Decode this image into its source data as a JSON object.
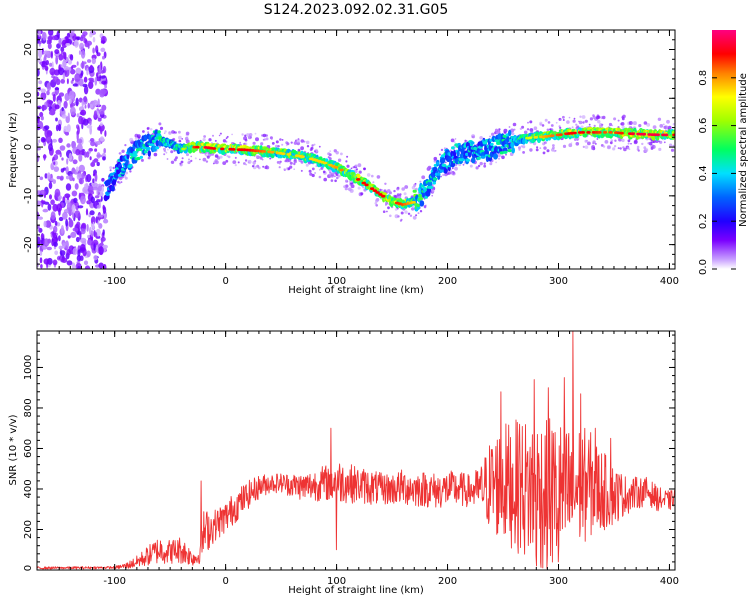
{
  "figure_title": "S124.2023.092.02.31.G05",
  "chart_data": [
    {
      "type": "heatmap",
      "title": "",
      "xlabel": "Height of straight line (km)",
      "ylabel": "Frequency (Hz)",
      "xlim": [
        -170,
        405
      ],
      "ylim": [
        -25,
        24
      ],
      "x_ticks": [
        -100,
        0,
        100,
        200,
        300,
        400
      ],
      "y_ticks": [
        -20,
        -10,
        0,
        10,
        20
      ],
      "grid": false,
      "colorbar": {
        "label": "Normalized spectral amplitude",
        "range": [
          0.0,
          1.0
        ],
        "ticks": [
          0.0,
          0.2,
          0.4,
          0.6,
          0.8
        ],
        "tick_labels": [
          "0.0",
          "0.2",
          "0.4",
          "0.6",
          "0.8"
        ],
        "colors": [
          "#ffffff",
          "#6a00ff",
          "#0000ff",
          "#00c8ff",
          "#00ff00",
          "#ffff00",
          "#ff0000",
          "#ff00aa"
        ]
      },
      "noise_region_x": [
        -170,
        -108
      ],
      "ridge": {
        "x": [
          -108,
          -100,
          -90,
          -80,
          -70,
          -60,
          -50,
          -40,
          -30,
          -20,
          -10,
          0,
          10,
          20,
          30,
          40,
          50,
          60,
          70,
          80,
          90,
          100,
          110,
          120,
          130,
          140,
          150,
          160,
          170,
          180,
          190,
          200,
          210,
          220,
          230,
          240,
          250,
          260,
          270,
          280,
          290,
          300,
          310,
          320,
          330,
          340,
          350,
          360,
          370,
          380,
          390,
          400,
          405
        ],
        "y": [
          -9,
          -6,
          -3,
          -1,
          0.5,
          1.5,
          0.5,
          -0.5,
          0,
          0,
          -0.3,
          -0.4,
          -0.5,
          -0.6,
          -0.8,
          -1,
          -1.3,
          -1.6,
          -2,
          -2.6,
          -3.3,
          -4.2,
          -5.3,
          -6.7,
          -8.2,
          -9.8,
          -11.2,
          -11.8,
          -11.3,
          -9,
          -5,
          -2.5,
          -1.5,
          -1,
          -0.8,
          -0.3,
          0.5,
          1.3,
          1.8,
          2,
          2.2,
          2.5,
          2.8,
          3,
          3,
          3,
          3,
          2.8,
          2.7,
          2.6,
          2.5,
          2.5,
          2.5
        ],
        "amplitude": [
          0.35,
          0.4,
          0.45,
          0.5,
          0.5,
          0.55,
          0.5,
          0.55,
          0.8,
          0.9,
          0.85,
          0.85,
          0.85,
          0.85,
          0.8,
          0.75,
          0.7,
          0.7,
          0.7,
          0.7,
          0.7,
          0.75,
          0.8,
          0.85,
          0.85,
          0.85,
          0.85,
          0.8,
          0.7,
          0.5,
          0.45,
          0.45,
          0.45,
          0.45,
          0.45,
          0.45,
          0.5,
          0.55,
          0.6,
          0.7,
          0.75,
          0.8,
          0.85,
          0.85,
          0.85,
          0.8,
          0.8,
          0.85,
          0.9,
          0.9,
          0.9,
          0.9,
          0.85
        ]
      }
    },
    {
      "type": "line",
      "title": "",
      "xlabel": "Height of straight line (km)",
      "ylabel": "SNR (10 * v/v)",
      "xlim": [
        -170,
        405
      ],
      "ylim": [
        0,
        1180
      ],
      "x_ticks": [
        -100,
        0,
        100,
        200,
        300,
        400
      ],
      "y_ticks": [
        0,
        200,
        400,
        600,
        800,
        1000
      ],
      "grid": false,
      "series": [
        {
          "color": "#ee3333",
          "envelope_x": [
            -170,
            -100,
            -90,
            -80,
            -70,
            -60,
            -50,
            -40,
            -30,
            -25,
            -20,
            -10,
            0,
            10,
            20,
            30,
            40,
            50,
            60,
            70,
            80,
            90,
            100,
            110,
            120,
            130,
            140,
            150,
            160,
            170,
            180,
            190,
            200,
            210,
            220,
            230,
            240,
            250,
            260,
            270,
            280,
            290,
            300,
            310,
            320,
            330,
            340,
            350,
            360,
            370,
            380,
            390,
            400,
            405
          ],
          "envelope_mean": [
            10,
            12,
            20,
            40,
            70,
            100,
            90,
            100,
            60,
            60,
            180,
            220,
            260,
            320,
            370,
            410,
            430,
            430,
            420,
            410,
            420,
            430,
            440,
            430,
            420,
            410,
            400,
            400,
            410,
            400,
            400,
            390,
            400,
            400,
            390,
            400,
            420,
            430,
            420,
            400,
            390,
            380,
            370,
            380,
            420,
            420,
            390,
            370,
            370,
            380,
            390,
            350,
            340,
            360
          ],
          "envelope_spread": [
            6,
            6,
            15,
            30,
            50,
            70,
            60,
            70,
            40,
            40,
            120,
            80,
            80,
            80,
            70,
            60,
            50,
            50,
            60,
            70,
            80,
            90,
            110,
            100,
            90,
            90,
            80,
            80,
            90,
            90,
            90,
            90,
            90,
            90,
            80,
            120,
            250,
            300,
            320,
            350,
            380,
            400,
            380,
            350,
            300,
            260,
            200,
            150,
            100,
            80,
            70,
            60,
            50,
            40
          ],
          "peaks": [
            {
              "x": 95,
              "y": 700
            },
            {
              "x": 100,
              "y": 100
            },
            {
              "x": -22,
              "y": 440
            },
            {
              "x": 248,
              "y": 880
            },
            {
              "x": 265,
              "y": 720
            },
            {
              "x": 278,
              "y": 940
            },
            {
              "x": 291,
              "y": 900
            },
            {
              "x": 305,
              "y": 950
            },
            {
              "x": 313,
              "y": 1180
            },
            {
              "x": 320,
              "y": 870
            },
            {
              "x": 333,
              "y": 700
            },
            {
              "x": 347,
              "y": 650
            },
            {
              "x": 280,
              "y": 20
            },
            {
              "x": 300,
              "y": 40
            }
          ]
        }
      ]
    }
  ]
}
